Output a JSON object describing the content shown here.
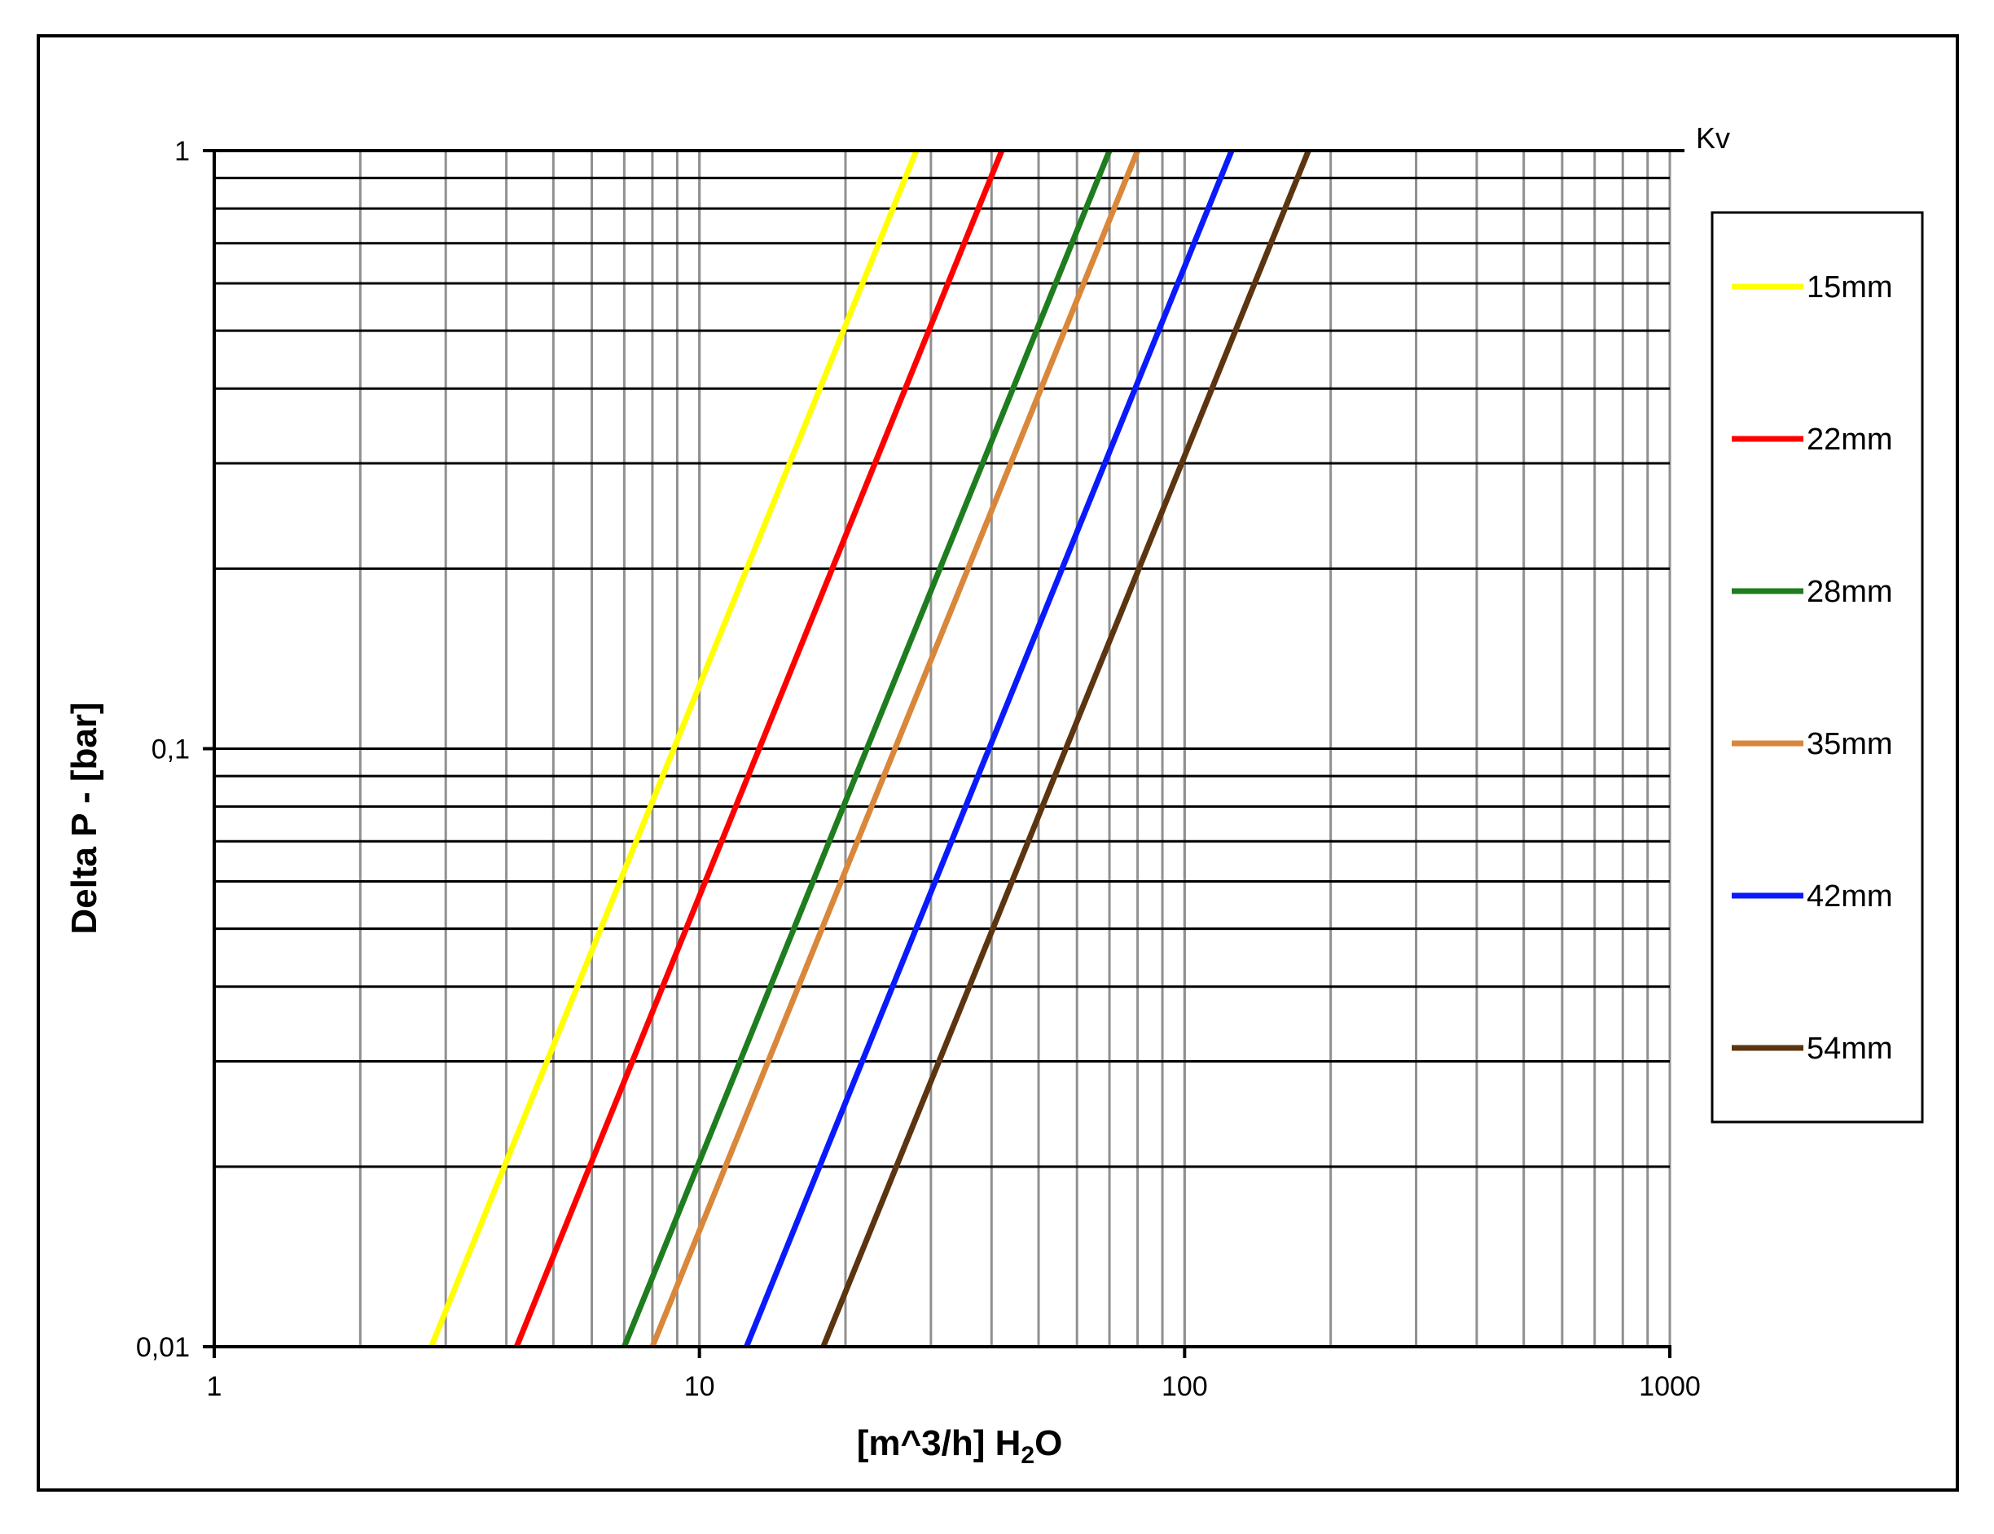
{
  "chart_data": {
    "type": "line",
    "x_scale": "log",
    "y_scale": "log",
    "xlim": [
      1,
      1000
    ],
    "ylim": [
      0.01,
      1
    ],
    "x_ticks": [
      {
        "value": 1,
        "label": "1"
      },
      {
        "value": 10,
        "label": "10"
      },
      {
        "value": 100,
        "label": "100"
      },
      {
        "value": 1000,
        "label": "1000"
      }
    ],
    "y_ticks": [
      {
        "value": 0.01,
        "label": "0,01"
      },
      {
        "value": 0.1,
        "label": "0,1"
      },
      {
        "value": 1,
        "label": "1"
      }
    ],
    "xlabel_main": "[m^3/h] H",
    "xlabel_sub": "2",
    "xlabel_tail": "O",
    "ylabel": "Delta P - [bar]",
    "corner_label": "Kv",
    "grid": true,
    "legend_position": "right",
    "series": [
      {
        "name": "15mm",
        "color": "#ffff00",
        "points": [
          [
            2.8,
            0.01
          ],
          [
            28,
            1
          ]
        ]
      },
      {
        "name": "22mm",
        "color": "#ff0000",
        "points": [
          [
            4.2,
            0.01
          ],
          [
            42,
            1
          ]
        ]
      },
      {
        "name": "28mm",
        "color": "#1e7d1e",
        "points": [
          [
            7.0,
            0.01
          ],
          [
            70,
            1
          ]
        ]
      },
      {
        "name": "35mm",
        "color": "#d9873a",
        "points": [
          [
            8.0,
            0.01
          ],
          [
            80,
            1
          ]
        ]
      },
      {
        "name": "42mm",
        "color": "#0a1aff",
        "points": [
          [
            12.5,
            0.01
          ],
          [
            125,
            1
          ]
        ]
      },
      {
        "name": "54mm",
        "color": "#5c3410",
        "points": [
          [
            18,
            0.01
          ],
          [
            180,
            1
          ]
        ]
      }
    ]
  }
}
